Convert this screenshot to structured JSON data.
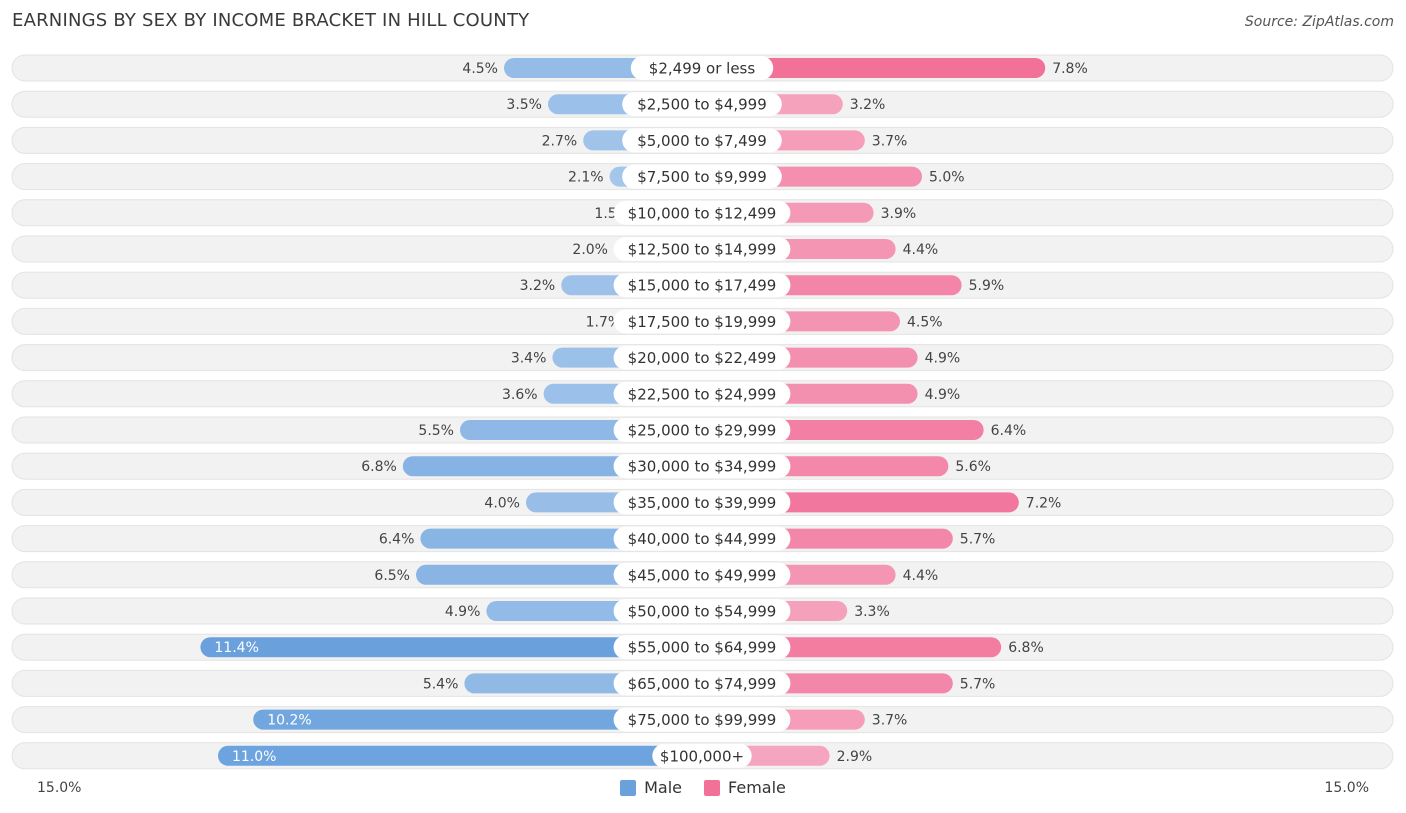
{
  "header": {
    "title": "EARNINGS BY SEX BY INCOME BRACKET IN HILL COUNTY",
    "source": "Source: ZipAtlas.com"
  },
  "axis": {
    "left_label": "15.0%",
    "right_label": "15.0%"
  },
  "legend": {
    "male_label": "Male",
    "female_label": "Female"
  },
  "colors": {
    "male_light": "#a8c8ec",
    "male_strong": "#6aa1dd",
    "female_light": "#f5a5bf",
    "female_strong": "#f27199",
    "track": "#f2f2f2"
  },
  "chart_data": {
    "type": "bar",
    "orientation": "horizontal-diverging",
    "title": "EARNINGS BY SEX BY INCOME BRACKET IN HILL COUNTY",
    "xlim": [
      -15.0,
      15.0
    ],
    "categories": [
      "$2,499 or less",
      "$2,500 to $4,999",
      "$5,000 to $7,499",
      "$7,500 to $9,999",
      "$10,000 to $12,499",
      "$12,500 to $14,999",
      "$15,000 to $17,499",
      "$17,500 to $19,999",
      "$20,000 to $22,499",
      "$22,500 to $24,999",
      "$25,000 to $29,999",
      "$30,000 to $34,999",
      "$35,000 to $39,999",
      "$40,000 to $44,999",
      "$45,000 to $49,999",
      "$50,000 to $54,999",
      "$55,000 to $64,999",
      "$65,000 to $74,999",
      "$75,000 to $99,999",
      "$100,000+"
    ],
    "series": [
      {
        "name": "Male",
        "values": [
          4.5,
          3.5,
          2.7,
          2.1,
          1.5,
          2.0,
          3.2,
          1.7,
          3.4,
          3.6,
          5.5,
          6.8,
          4.0,
          6.4,
          6.5,
          4.9,
          11.4,
          5.4,
          10.2,
          11.0
        ],
        "labels": [
          "4.5%",
          "3.5%",
          "2.7%",
          "2.1%",
          "1.5%",
          "2.0%",
          "3.2%",
          "1.7%",
          "3.4%",
          "3.6%",
          "5.5%",
          "6.8%",
          "4.0%",
          "6.4%",
          "6.5%",
          "4.9%",
          "11.4%",
          "5.4%",
          "10.2%",
          "11.0%"
        ]
      },
      {
        "name": "Female",
        "values": [
          7.8,
          3.2,
          3.7,
          5.0,
          3.9,
          4.4,
          5.9,
          4.5,
          4.9,
          4.9,
          6.4,
          5.6,
          7.2,
          5.7,
          4.4,
          3.3,
          6.8,
          5.7,
          3.7,
          2.9
        ],
        "labels": [
          "7.8%",
          "3.2%",
          "3.7%",
          "5.0%",
          "3.9%",
          "4.4%",
          "5.9%",
          "4.5%",
          "4.9%",
          "4.9%",
          "6.4%",
          "5.6%",
          "7.2%",
          "5.7%",
          "4.4%",
          "3.3%",
          "6.8%",
          "5.7%",
          "3.7%",
          "2.9%"
        ]
      }
    ]
  }
}
